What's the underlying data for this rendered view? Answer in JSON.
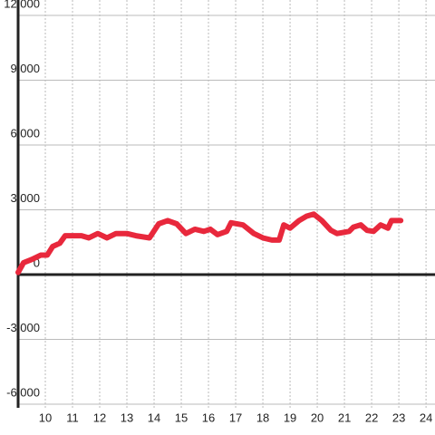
{
  "chart_data": {
    "type": "line",
    "x": [
      9.0,
      9.2,
      9.5,
      9.83,
      10.07,
      10.27,
      10.53,
      10.73,
      11.0,
      11.33,
      11.6,
      11.93,
      12.27,
      12.6,
      13.0,
      13.33,
      13.83,
      14.17,
      14.5,
      14.83,
      15.17,
      15.5,
      15.83,
      16.07,
      16.33,
      16.67,
      16.83,
      17.27,
      17.67,
      18.0,
      18.33,
      18.6,
      18.77,
      19.0,
      19.33,
      19.6,
      19.87,
      20.17,
      20.5,
      20.73,
      21.17,
      21.33,
      21.6,
      21.83,
      22.07,
      22.33,
      22.6,
      22.73,
      23.07
    ],
    "series": [
      {
        "color": "#e8283c",
        "values": [
          100,
          550,
          700,
          900,
          900,
          1300,
          1450,
          1800,
          1800,
          1800,
          1700,
          1900,
          1700,
          1900,
          1900,
          1800,
          1700,
          2350,
          2500,
          2350,
          1900,
          2100,
          2000,
          2100,
          1850,
          2000,
          2400,
          2300,
          1900,
          1700,
          1600,
          1600,
          2300,
          2150,
          2500,
          2700,
          2800,
          2500,
          2050,
          1900,
          2000,
          2200,
          2300,
          2050,
          2000,
          2300,
          2150,
          2500,
          2500
        ]
      }
    ],
    "xlim": [
      9,
      24.33
    ],
    "xticks": [
      10,
      11,
      12,
      13,
      14,
      15,
      16,
      17,
      18,
      19,
      20,
      21,
      22,
      23,
      24
    ],
    "ylim": [
      -6000,
      12000
    ],
    "yticks": [
      {
        "value": -6000,
        "label": "-6,000"
      },
      {
        "value": -3000,
        "label": "-3,000"
      },
      0,
      {
        "value": 3000,
        "label": "3,000"
      },
      {
        "value": 6000,
        "label": "6,000"
      },
      {
        "value": 9000,
        "label": "9,000"
      },
      {
        "value": 12000,
        "label": "12,000"
      }
    ],
    "grid": true
  }
}
